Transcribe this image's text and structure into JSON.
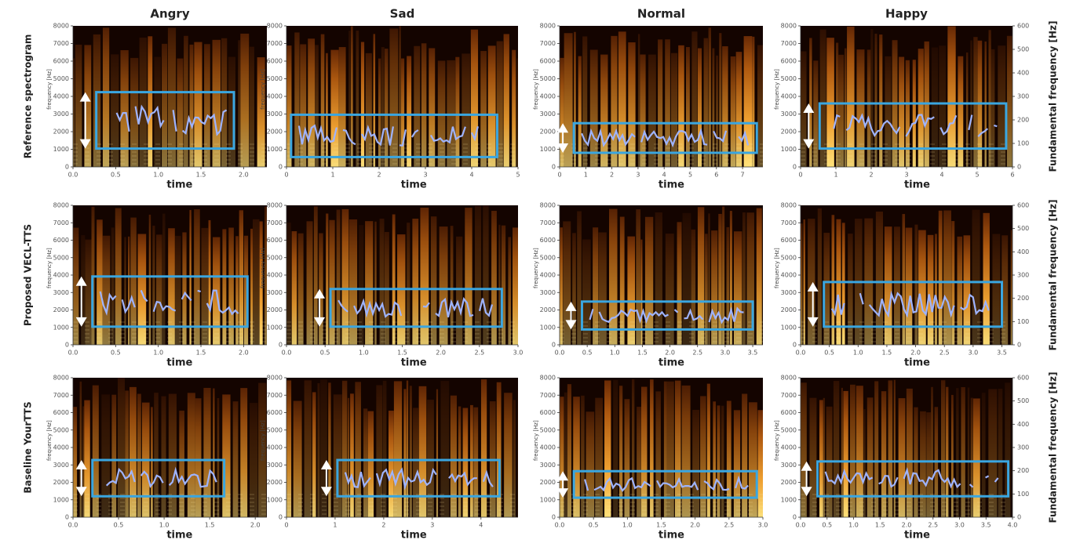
{
  "columns": [
    "Angry",
    "Sad",
    "Normal",
    "Happy"
  ],
  "rows": [
    "Reference spectrogram",
    "Proposed VECL-TTS",
    "Baseline YourTTS"
  ],
  "y_axis_label": "frequency [Hz]",
  "x_axis_label": "time",
  "y_ticks": [
    "0",
    "1000",
    "2000",
    "3000",
    "4000",
    "5000",
    "6000",
    "7000",
    "8000"
  ],
  "y2_axis_label": "Fundamental frequency [Hz]",
  "y2_ticks": [
    "0",
    "100",
    "200",
    "300",
    "400",
    "500",
    "600"
  ],
  "panels": [
    [
      {
        "x_ticks": [
          "0.0",
          "0.5",
          "1.0",
          "1.5",
          "2.0"
        ]
      },
      {
        "x_ticks": [
          "0",
          "1",
          "2",
          "3",
          "4",
          "5"
        ]
      },
      {
        "x_ticks": [
          "0",
          "1",
          "2",
          "3",
          "4",
          "5",
          "6",
          "7"
        ]
      },
      {
        "x_ticks": [
          "0",
          "1",
          "2",
          "3",
          "4",
          "5",
          "6"
        ]
      }
    ],
    [
      {
        "x_ticks": [
          "0.0",
          "0.5",
          "1.0",
          "1.5",
          "2.0"
        ]
      },
      {
        "x_ticks": [
          "0.0",
          "0.5",
          "1.0",
          "1.5",
          "2.0",
          "2.5",
          "3.0"
        ]
      },
      {
        "x_ticks": [
          "0.0",
          "0.5",
          "1.0",
          "1.5",
          "2.0",
          "2.5",
          "3.0",
          "3.5"
        ]
      },
      {
        "x_ticks": [
          "0.0",
          "0.5",
          "1.0",
          "1.5",
          "2.0",
          "2.5",
          "3.0",
          "3.5"
        ]
      }
    ],
    [
      {
        "x_ticks": [
          "0.0",
          "0.5",
          "1.0",
          "1.5",
          "2.0"
        ]
      },
      {
        "x_ticks": [
          "0",
          "1",
          "2",
          "3",
          "4"
        ]
      },
      {
        "x_ticks": [
          "0.0",
          "0.5",
          "1.0",
          "1.5",
          "2.0",
          "2.5",
          "3.0"
        ]
      },
      {
        "x_ticks": [
          "0.0",
          "0.5",
          "1.0",
          "1.5",
          "2.0",
          "2.5",
          "3.0",
          "3.5",
          "4.0"
        ]
      }
    ]
  ]
}
